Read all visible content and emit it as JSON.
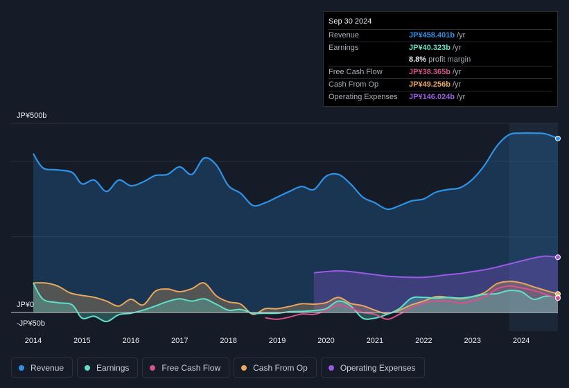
{
  "tooltip": {
    "date": "Sep 30 2024",
    "rows": [
      {
        "label": "Revenue",
        "value": "JP¥458.401b",
        "unit": "/yr",
        "color": "#2e93e6"
      },
      {
        "label": "Earnings",
        "value": "JP¥40.323b",
        "unit": "/yr",
        "color": "#5fe0c9"
      },
      {
        "label": "",
        "value": "8.8%",
        "unit": "profit margin",
        "color": "#e8ebef"
      },
      {
        "label": "Free Cash Flow",
        "value": "JP¥38.365b",
        "unit": "/yr",
        "color": "#d6528c"
      },
      {
        "label": "Cash From Op",
        "value": "JP¥49.256b",
        "unit": "/yr",
        "color": "#e8a85c"
      },
      {
        "label": "Operating Expenses",
        "value": "JP¥146.024b",
        "unit": "/yr",
        "color": "#9b5ae6"
      }
    ]
  },
  "legend": [
    {
      "label": "Revenue",
      "color": "#2e93e6"
    },
    {
      "label": "Earnings",
      "color": "#5fe0c9"
    },
    {
      "label": "Free Cash Flow",
      "color": "#d6528c"
    },
    {
      "label": "Cash From Op",
      "color": "#e8a85c"
    },
    {
      "label": "Operating Expenses",
      "color": "#9b5ae6"
    }
  ],
  "chart_data": {
    "type": "area",
    "y_axis_labels": {
      "top": "JP¥500b",
      "zero": "JP¥0",
      "bottom": "-JP¥50b"
    },
    "ylim": [
      -50,
      500
    ],
    "xlim": [
      2014.0,
      2024.75
    ],
    "x_ticks": [
      "2014",
      "2015",
      "2016",
      "2017",
      "2018",
      "2019",
      "2020",
      "2021",
      "2022",
      "2023",
      "2024"
    ],
    "highlight_start": 2023.75,
    "series": [
      {
        "name": "Revenue",
        "color": "#2e93e6",
        "fill": true,
        "points": [
          [
            2014.0,
            420
          ],
          [
            2014.2,
            382
          ],
          [
            2014.5,
            377
          ],
          [
            2014.8,
            370
          ],
          [
            2015.0,
            340
          ],
          [
            2015.25,
            350
          ],
          [
            2015.5,
            320
          ],
          [
            2015.75,
            350
          ],
          [
            2016.0,
            335
          ],
          [
            2016.25,
            345
          ],
          [
            2016.5,
            362
          ],
          [
            2016.75,
            365
          ],
          [
            2017.0,
            385
          ],
          [
            2017.25,
            365
          ],
          [
            2017.5,
            408
          ],
          [
            2017.75,
            390
          ],
          [
            2018.0,
            335
          ],
          [
            2018.25,
            315
          ],
          [
            2018.5,
            283
          ],
          [
            2018.75,
            290
          ],
          [
            2019.0,
            305
          ],
          [
            2019.25,
            320
          ],
          [
            2019.5,
            333
          ],
          [
            2019.75,
            325
          ],
          [
            2020.0,
            360
          ],
          [
            2020.25,
            365
          ],
          [
            2020.5,
            340
          ],
          [
            2020.75,
            305
          ],
          [
            2021.0,
            290
          ],
          [
            2021.25,
            273
          ],
          [
            2021.5,
            282
          ],
          [
            2021.75,
            295
          ],
          [
            2022.0,
            300
          ],
          [
            2022.25,
            318
          ],
          [
            2022.5,
            325
          ],
          [
            2022.75,
            330
          ],
          [
            2023.0,
            352
          ],
          [
            2023.25,
            390
          ],
          [
            2023.5,
            440
          ],
          [
            2023.75,
            470
          ],
          [
            2024.0,
            474
          ],
          [
            2024.25,
            474
          ],
          [
            2024.5,
            472
          ],
          [
            2024.75,
            460
          ]
        ]
      },
      {
        "name": "Operating Expenses",
        "color": "#9b5ae6",
        "fill": true,
        "points": [
          [
            2019.75,
            105
          ],
          [
            2020.0,
            108
          ],
          [
            2020.25,
            110
          ],
          [
            2020.5,
            108
          ],
          [
            2020.75,
            104
          ],
          [
            2021.0,
            100
          ],
          [
            2021.25,
            96
          ],
          [
            2021.5,
            94
          ],
          [
            2021.75,
            93
          ],
          [
            2022.0,
            93
          ],
          [
            2022.25,
            96
          ],
          [
            2022.5,
            100
          ],
          [
            2022.75,
            103
          ],
          [
            2023.0,
            108
          ],
          [
            2023.25,
            113
          ],
          [
            2023.5,
            120
          ],
          [
            2023.75,
            128
          ],
          [
            2024.0,
            136
          ],
          [
            2024.25,
            144
          ],
          [
            2024.5,
            149
          ],
          [
            2024.75,
            146
          ]
        ]
      },
      {
        "name": "Cash From Op",
        "color": "#e8a85c",
        "fill": true,
        "points": [
          [
            2014.0,
            78
          ],
          [
            2014.25,
            78
          ],
          [
            2014.5,
            70
          ],
          [
            2014.75,
            52
          ],
          [
            2015.0,
            45
          ],
          [
            2015.25,
            40
          ],
          [
            2015.5,
            30
          ],
          [
            2015.75,
            17
          ],
          [
            2016.0,
            35
          ],
          [
            2016.25,
            20
          ],
          [
            2016.5,
            56
          ],
          [
            2016.75,
            62
          ],
          [
            2017.0,
            55
          ],
          [
            2017.25,
            63
          ],
          [
            2017.5,
            78
          ],
          [
            2017.75,
            44
          ],
          [
            2018.0,
            28
          ],
          [
            2018.25,
            22
          ],
          [
            2018.5,
            -5
          ],
          [
            2018.75,
            10
          ],
          [
            2019.0,
            10
          ],
          [
            2019.25,
            16
          ],
          [
            2019.5,
            23
          ],
          [
            2019.75,
            22
          ],
          [
            2020.0,
            26
          ],
          [
            2020.25,
            40
          ],
          [
            2020.5,
            24
          ],
          [
            2020.75,
            18
          ],
          [
            2021.0,
            6
          ],
          [
            2021.25,
            -3
          ],
          [
            2021.5,
            6
          ],
          [
            2021.75,
            20
          ],
          [
            2022.0,
            30
          ],
          [
            2022.25,
            42
          ],
          [
            2022.5,
            40
          ],
          [
            2022.75,
            36
          ],
          [
            2023.0,
            42
          ],
          [
            2023.25,
            53
          ],
          [
            2023.5,
            76
          ],
          [
            2023.75,
            82
          ],
          [
            2024.0,
            78
          ],
          [
            2024.25,
            68
          ],
          [
            2024.5,
            58
          ],
          [
            2024.75,
            49
          ]
        ]
      },
      {
        "name": "Earnings",
        "color": "#5fe0c9",
        "fill": true,
        "points": [
          [
            2014.0,
            78
          ],
          [
            2014.2,
            35
          ],
          [
            2014.5,
            26
          ],
          [
            2014.8,
            20
          ],
          [
            2015.0,
            -15
          ],
          [
            2015.25,
            -10
          ],
          [
            2015.5,
            -24
          ],
          [
            2015.75,
            -6
          ],
          [
            2016.0,
            -2
          ],
          [
            2016.25,
            6
          ],
          [
            2016.5,
            17
          ],
          [
            2016.75,
            29
          ],
          [
            2017.0,
            36
          ],
          [
            2017.25,
            30
          ],
          [
            2017.5,
            36
          ],
          [
            2017.75,
            22
          ],
          [
            2018.0,
            6
          ],
          [
            2018.25,
            8
          ],
          [
            2018.5,
            -2
          ],
          [
            2018.75,
            -2
          ],
          [
            2019.0,
            -2
          ],
          [
            2019.25,
            2
          ],
          [
            2019.5,
            3
          ],
          [
            2019.75,
            5
          ],
          [
            2020.0,
            10
          ],
          [
            2020.25,
            30
          ],
          [
            2020.5,
            18
          ],
          [
            2020.75,
            -15
          ],
          [
            2021.0,
            -15
          ],
          [
            2021.25,
            -5
          ],
          [
            2021.5,
            10
          ],
          [
            2021.75,
            38
          ],
          [
            2022.0,
            40
          ],
          [
            2022.25,
            38
          ],
          [
            2022.5,
            40
          ],
          [
            2022.75,
            38
          ],
          [
            2023.0,
            42
          ],
          [
            2023.25,
            48
          ],
          [
            2023.5,
            50
          ],
          [
            2023.75,
            58
          ],
          [
            2024.0,
            55
          ],
          [
            2024.25,
            35
          ],
          [
            2024.5,
            43
          ],
          [
            2024.75,
            40
          ]
        ]
      },
      {
        "name": "Free Cash Flow",
        "color": "#d6528c",
        "fill": false,
        "points": [
          [
            2018.75,
            -14
          ],
          [
            2019.0,
            -18
          ],
          [
            2019.25,
            -12
          ],
          [
            2019.5,
            -4
          ],
          [
            2019.75,
            -5
          ],
          [
            2020.0,
            5
          ],
          [
            2020.25,
            20
          ],
          [
            2020.5,
            12
          ],
          [
            2020.75,
            0
          ],
          [
            2021.0,
            -5
          ],
          [
            2021.25,
            -18
          ],
          [
            2021.5,
            -5
          ],
          [
            2021.75,
            12
          ],
          [
            2022.0,
            25
          ],
          [
            2022.25,
            30
          ],
          [
            2022.5,
            30
          ],
          [
            2022.75,
            25
          ],
          [
            2023.0,
            30
          ],
          [
            2023.25,
            42
          ],
          [
            2023.5,
            62
          ],
          [
            2023.75,
            70
          ],
          [
            2024.0,
            65
          ],
          [
            2024.25,
            58
          ],
          [
            2024.5,
            48
          ],
          [
            2024.75,
            38
          ]
        ]
      }
    ]
  }
}
